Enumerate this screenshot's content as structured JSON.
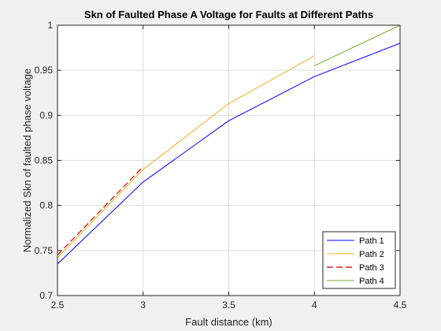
{
  "chart_data": {
    "type": "line",
    "title": "Skn of Faulted Phase A Voltage for Faults at Different Paths",
    "xlabel": "Fault distance (km)",
    "ylabel": "Normalized Skn of faulted phase voltage",
    "xlim": [
      2.5,
      4.5
    ],
    "ylim": [
      0.7,
      1.0
    ],
    "xticks": [
      2.5,
      3,
      3.5,
      4,
      4.5
    ],
    "xtick_labels": [
      "2.5",
      "3",
      "3.5",
      "4",
      "4.5"
    ],
    "yticks": [
      0.7,
      0.75,
      0.8,
      0.85,
      0.9,
      0.95,
      1.0
    ],
    "ytick_labels": [
      "0.7",
      "0.75",
      "0.8",
      "0.85",
      "0.9",
      "0.95",
      "1"
    ],
    "grid": true,
    "legend_position": "bottom-right",
    "series": [
      {
        "name": "Path 1",
        "color": "#0000ff",
        "dash": "solid",
        "x": [
          2.5,
          3.0,
          3.5,
          4.0,
          4.5
        ],
        "y": [
          0.735,
          0.826,
          0.894,
          0.943,
          0.98
        ]
      },
      {
        "name": "Path 2",
        "color": "#edb120",
        "dash": "solid",
        "x": [
          2.5,
          3.0,
          3.5,
          4.0
        ],
        "y": [
          0.742,
          0.84,
          0.913,
          0.966
        ]
      },
      {
        "name": "Path 3",
        "color": "#d62728",
        "dash": "dashed",
        "x": [
          2.5,
          3.0
        ],
        "y": [
          0.745,
          0.843
        ]
      },
      {
        "name": "Path 4",
        "color": "#77ac30",
        "dash": "solid",
        "x": [
          4.0,
          4.5
        ],
        "y": [
          0.955,
          1.0
        ]
      }
    ]
  }
}
